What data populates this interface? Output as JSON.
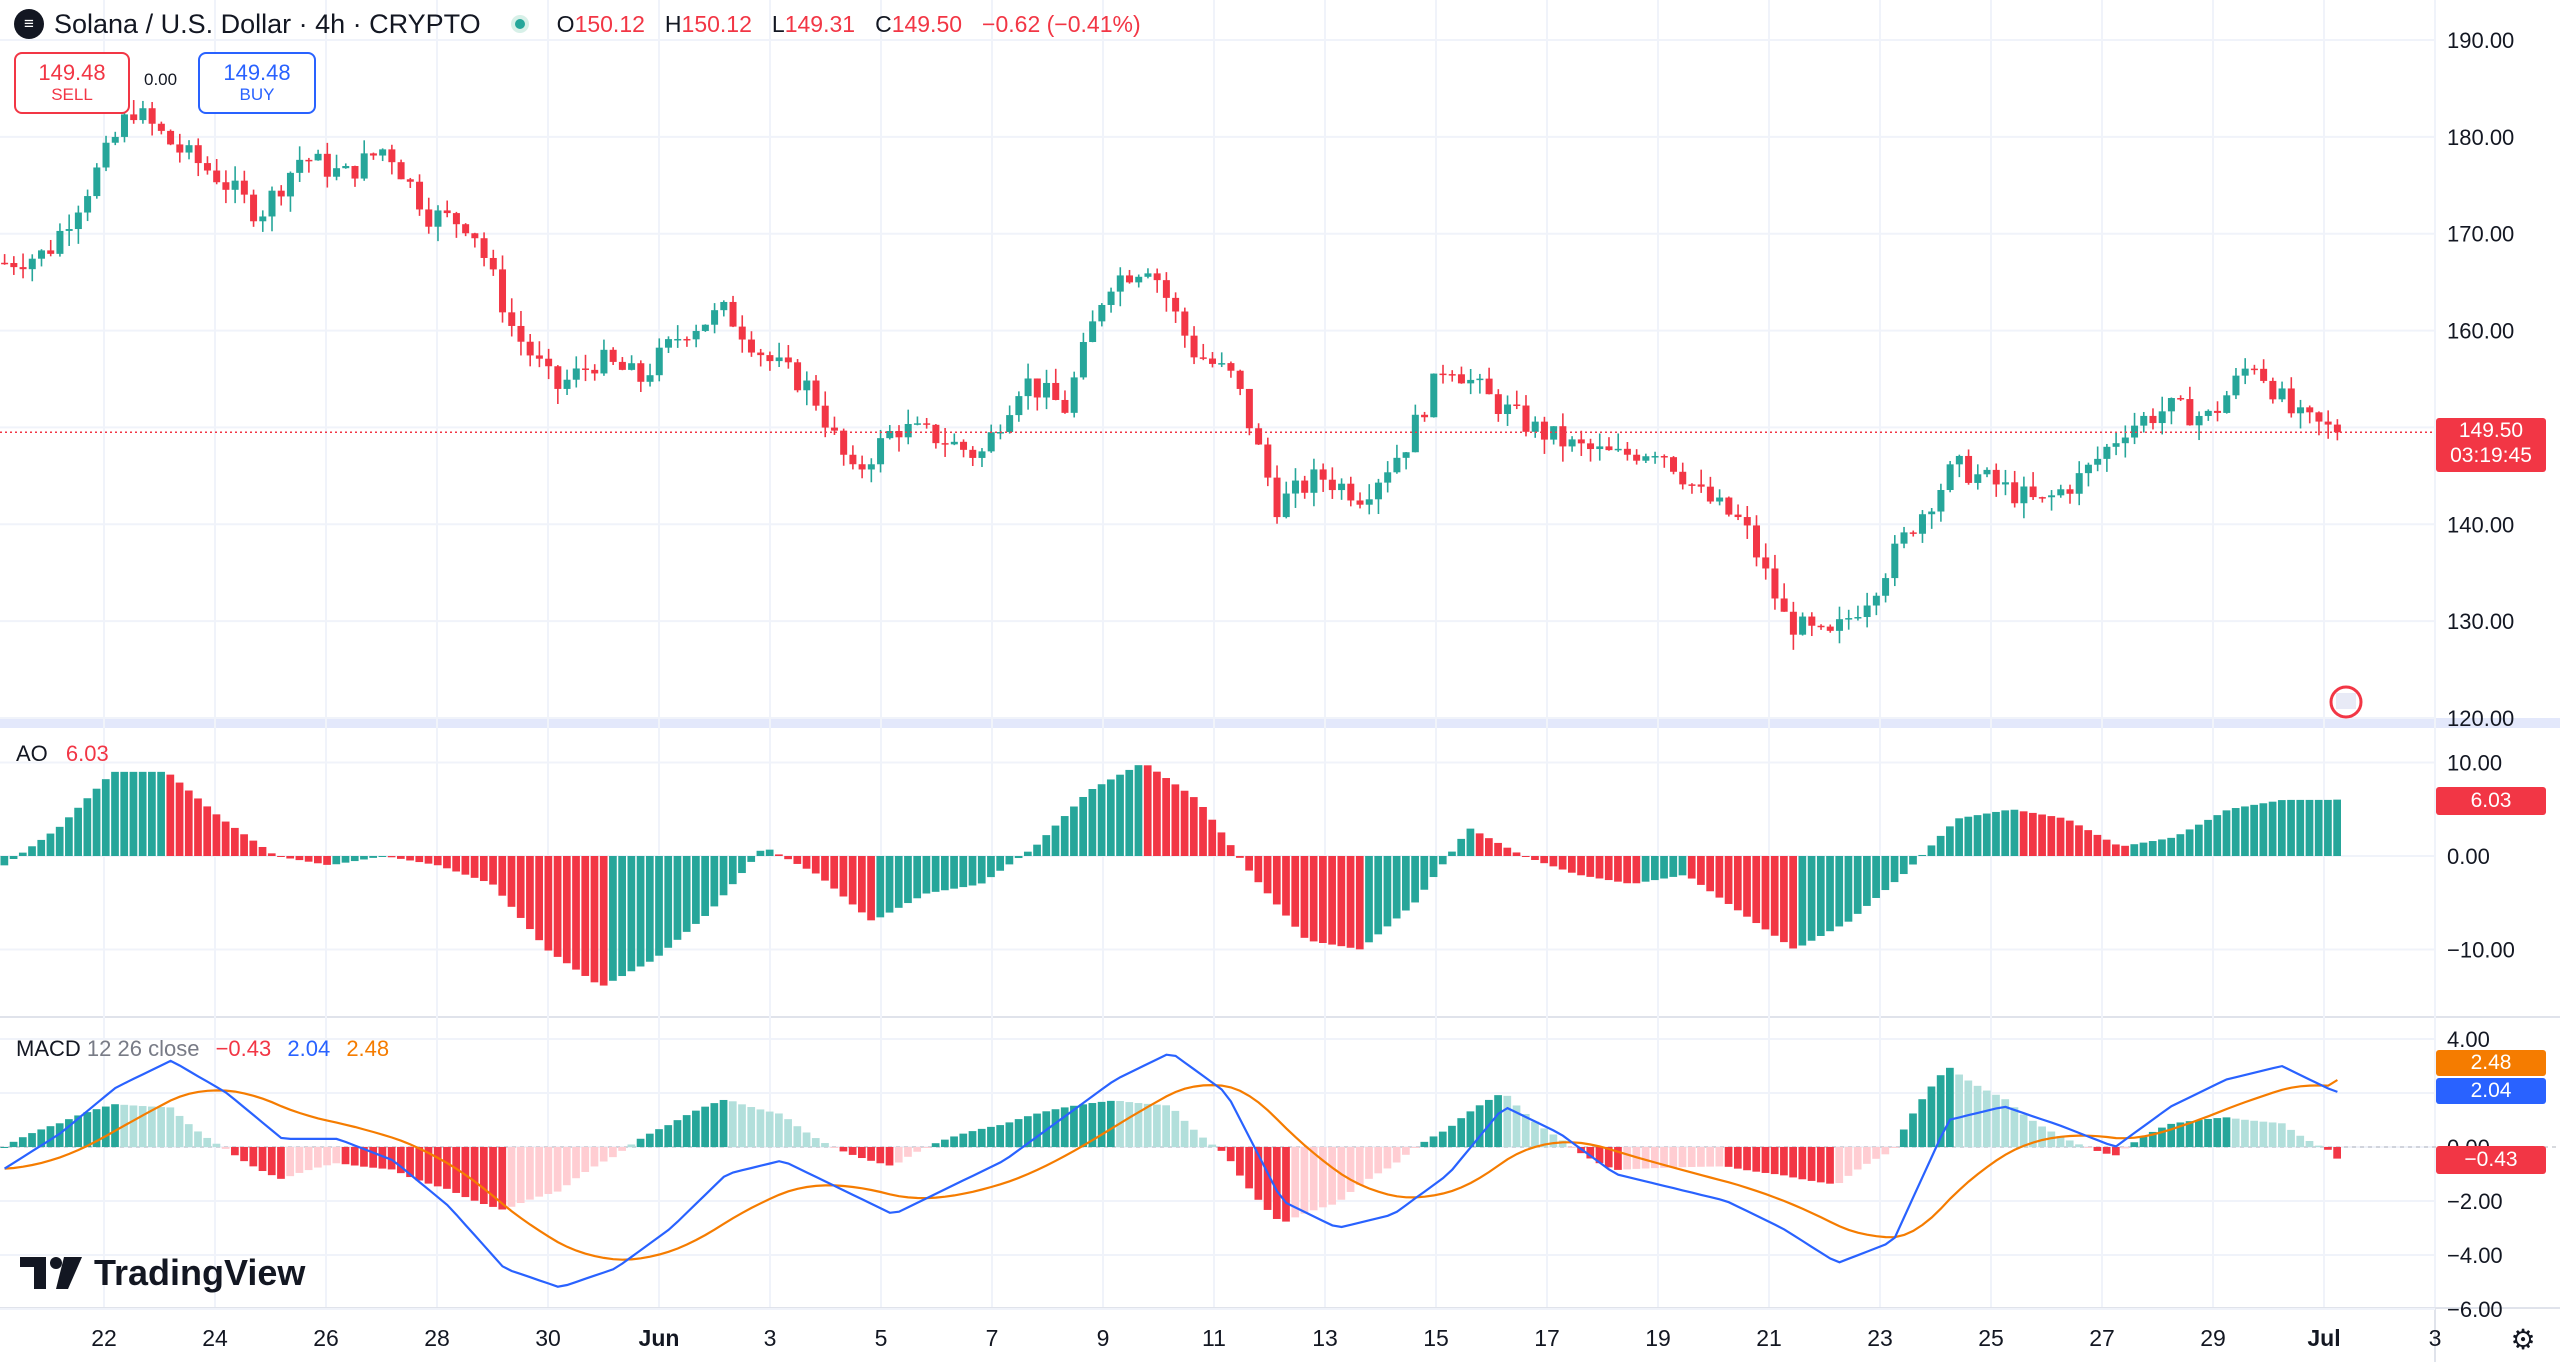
{
  "header": {
    "logo_icon": "solana-logo-icon",
    "symbol_title": "Solana / U.S. Dollar · 4h · CRYPTO",
    "ohlc": [
      {
        "key": "O",
        "value": "150.12"
      },
      {
        "key": "H",
        "value": "150.12"
      },
      {
        "key": "L",
        "value": "149.31"
      },
      {
        "key": "C",
        "value": "149.50"
      }
    ],
    "change": "−0.62 (−0.41%)"
  },
  "trade": {
    "sell_price": "149.48",
    "sell_label": "SELL",
    "buy_price": "149.48",
    "buy_label": "BUY",
    "spread": "0.00"
  },
  "colors": {
    "up": "#26a69a",
    "down": "#f23645",
    "macd_line": "#2962ff",
    "signal_line": "#f57c00",
    "up_light": "#b2dfdb",
    "down_light": "#ffcdd2"
  },
  "price_axis": {
    "ticks": [
      "190.00",
      "180.00",
      "170.00",
      "160.00",
      "150.00",
      "140.00",
      "130.00",
      "120.00"
    ],
    "last_price": "149.50",
    "countdown": "03:19:45"
  },
  "ao": {
    "title": "AO",
    "value": "6.03",
    "ticks": [
      "10.00",
      "0.00",
      "−10.00"
    ]
  },
  "macd": {
    "title": "MACD",
    "params": "12 26 close",
    "histogram": "−0.43",
    "macd": "2.04",
    "signal": "2.48",
    "ticks": [
      "4.00",
      "2.00",
      "0.00",
      "−2.00",
      "−4.00",
      "−6.00"
    ]
  },
  "time_axis": {
    "labels": [
      "22",
      "24",
      "26",
      "28",
      "30",
      "Jun",
      "3",
      "5",
      "7",
      "9",
      "11",
      "13",
      "15",
      "17",
      "19",
      "21",
      "23",
      "25",
      "27",
      "29",
      "Jul",
      "3"
    ]
  },
  "branding": {
    "name": "TradingView",
    "settings_icon": "gear-icon",
    "flag_icon": "us-flag-icon"
  },
  "chart_data": [
    {
      "type": "candlestick",
      "title": "Solana / U.S. Dollar · 4h · CRYPTO",
      "ylim": [
        120,
        190
      ],
      "x": [
        "22",
        "24",
        "26",
        "28",
        "30",
        "Jun",
        "3",
        "5",
        "7",
        "9",
        "11",
        "13",
        "15",
        "17",
        "19",
        "21",
        "23",
        "25",
        "27",
        "29",
        "Jul"
      ],
      "close_path": [
        167,
        168,
        175,
        183,
        179,
        176,
        172,
        178,
        176,
        179,
        172,
        171,
        160,
        154,
        157,
        155,
        160,
        162,
        157,
        154,
        145,
        150,
        149,
        147,
        155,
        152,
        165,
        167,
        158,
        155,
        142,
        145,
        143,
        148,
        157,
        153,
        150,
        148,
        147,
        148,
        143,
        140,
        130,
        128,
        133,
        140,
        146,
        144,
        142,
        145,
        150,
        152,
        151,
        157,
        151,
        149.5
      ],
      "last": 149.5
    },
    {
      "type": "bar",
      "title": "AO",
      "ylim": [
        -15,
        12
      ],
      "value": 6.03,
      "path": [
        -1,
        3,
        9,
        9,
        4,
        0,
        -1,
        0,
        -1,
        -3,
        -10,
        -14,
        -11,
        -6,
        1,
        -2,
        -7,
        -4,
        -3,
        1,
        7,
        10,
        6,
        -2,
        -9,
        -10,
        -5,
        3,
        0,
        -2,
        -3,
        -2,
        -6,
        -10,
        -7,
        -2,
        4,
        5,
        4,
        1,
        2,
        5,
        6,
        6
      ]
    },
    {
      "type": "line",
      "title": "MACD",
      "ylim": [
        -6,
        4
      ],
      "series": [
        {
          "name": "MACD",
          "last": 2.04
        },
        {
          "name": "signal",
          "last": 2.48
        },
        {
          "name": "histogram",
          "last": -0.43
        }
      ],
      "macd_path": [
        -0.8,
        0.5,
        2.2,
        3.2,
        2.0,
        0.3,
        0.3,
        -0.5,
        -2.2,
        -4.5,
        -5.2,
        -4.5,
        -3.0,
        -1.0,
        -0.5,
        -1.5,
        -2.5,
        -1.5,
        -0.5,
        1.0,
        2.5,
        3.5,
        2.0,
        -2.0,
        -3.0,
        -2.5,
        -1.0,
        1.5,
        0.5,
        -1.0,
        -1.5,
        -2.0,
        -3.0,
        -4.3,
        -3.5,
        1.0,
        1.5,
        0.8,
        0.0,
        1.5,
        2.5,
        3.0,
        2.0
      ]
    }
  ]
}
